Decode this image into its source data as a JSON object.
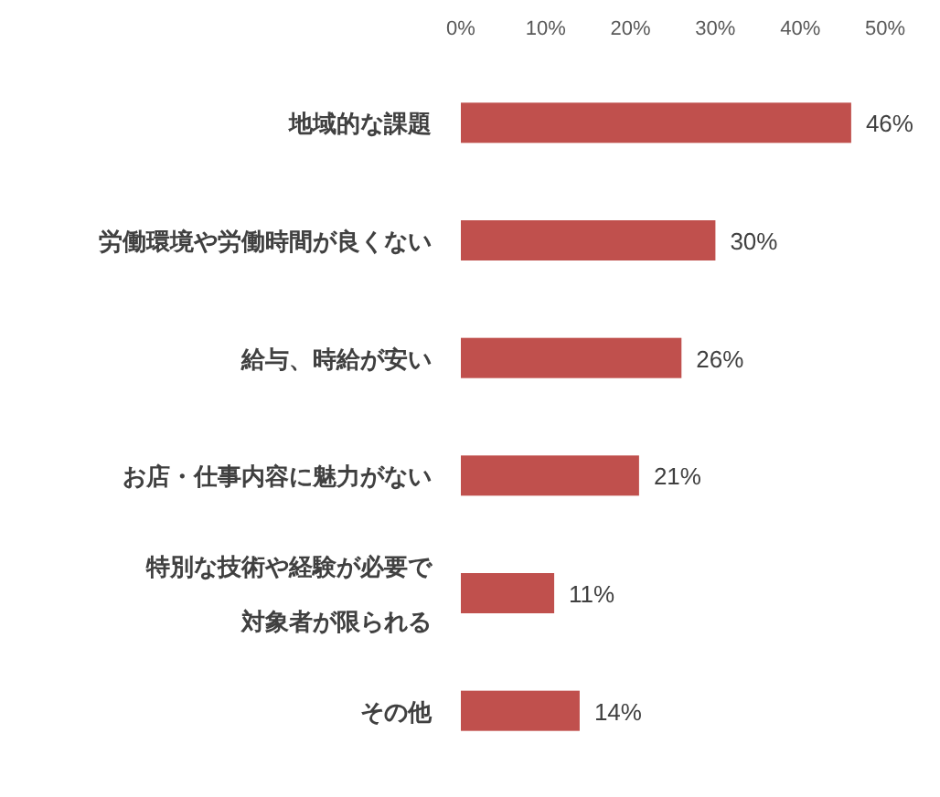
{
  "chart_data": {
    "type": "bar",
    "orientation": "horizontal",
    "categories": [
      "地域的な課題",
      "労働環境や労働時間が良くない",
      "給与、時給が安い",
      "お店・仕事内容に魅力がない",
      "特別な技術や経験が必要で対象者が限られる",
      "その他"
    ],
    "values": [
      46,
      30,
      26,
      21,
      11,
      14
    ],
    "color": "#c0504d",
    "xlim": [
      0,
      50
    ],
    "xticks": [
      {
        "value": 0,
        "label": "0%"
      },
      {
        "value": 10,
        "label": "10%"
      },
      {
        "value": 20,
        "label": "20%"
      },
      {
        "value": 30,
        "label": "30%"
      },
      {
        "value": 40,
        "label": "40%"
      },
      {
        "value": 50,
        "label": "50%"
      }
    ],
    "value_labels": [
      "46%",
      "30%",
      "26%",
      "21%",
      "11%",
      "14%"
    ]
  }
}
